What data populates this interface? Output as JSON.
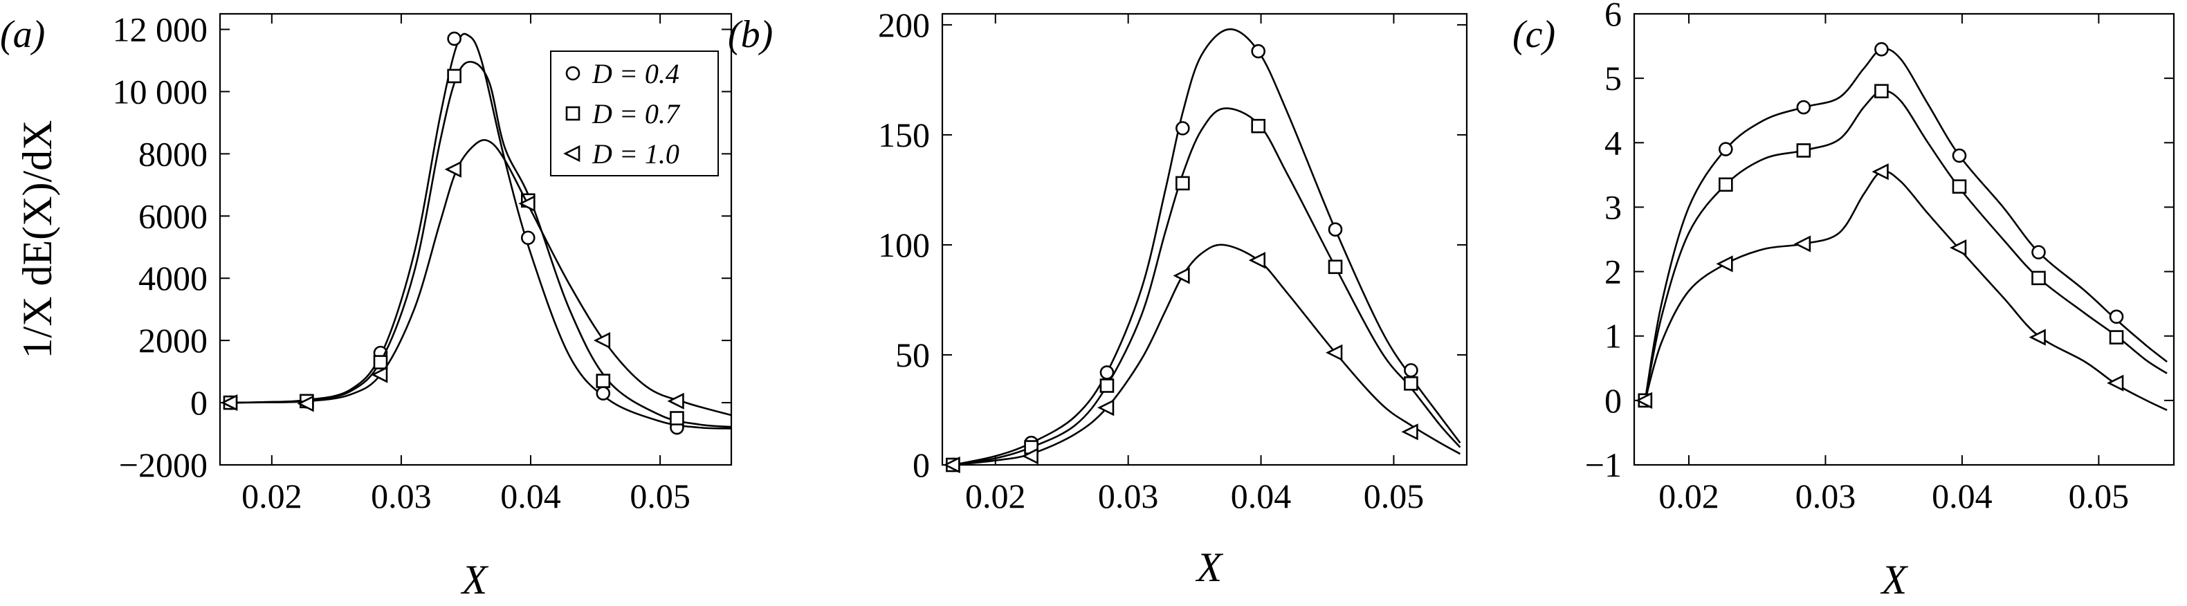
{
  "figure": {
    "panels": [
      {
        "label": "(a)",
        "xlabel": "X",
        "ylabel": "1/X dE(X)/dX"
      },
      {
        "label": "(b)",
        "xlabel": "X",
        "ylabel": ""
      },
      {
        "label": "(c)",
        "xlabel": "X",
        "ylabel": ""
      }
    ],
    "legend": [
      {
        "marker": "circle",
        "text": "D = 0.4"
      },
      {
        "marker": "square",
        "text": "D = 0.7"
      },
      {
        "marker": "triangle-left",
        "text": "D = 1.0"
      }
    ]
  },
  "chart_data": [
    {
      "type": "line",
      "panel_label": "(a)",
      "xlabel": "X",
      "ylabel": "1/X dE(X)/dX",
      "xlim": [
        0.016,
        0.0555
      ],
      "ylim": [
        -2000,
        12500
      ],
      "xticks": [
        0.02,
        0.03,
        0.04,
        0.05
      ],
      "xtick_labels": [
        "0.02",
        "0.03",
        "0.04",
        "0.05"
      ],
      "yticks": [
        -2000,
        0,
        2000,
        4000,
        6000,
        8000,
        10000,
        12000
      ],
      "ytick_labels": [
        "−2000",
        "0",
        "2000",
        "4000",
        "6000",
        "8000",
        "10 000",
        "12 000"
      ],
      "legend_position": "top-right",
      "grid": false,
      "series": [
        {
          "name": "D = 0.4",
          "marker": "circle",
          "curve": [
            [
              0.0168,
              0
            ],
            [
              0.0195,
              20
            ],
            [
              0.0225,
              80
            ],
            [
              0.026,
              400
            ],
            [
              0.0285,
              1600
            ],
            [
              0.031,
              4800
            ],
            [
              0.033,
              9200
            ],
            [
              0.0343,
              11500
            ],
            [
              0.0352,
              11800
            ],
            [
              0.0362,
              11000
            ],
            [
              0.038,
              7800
            ],
            [
              0.04,
              4800
            ],
            [
              0.043,
              1500
            ],
            [
              0.046,
              100
            ],
            [
              0.05,
              -600
            ],
            [
              0.053,
              -800
            ],
            [
              0.0555,
              -830
            ]
          ],
          "markers": [
            [
              0.0168,
              0
            ],
            [
              0.0227,
              40
            ],
            [
              0.0284,
              1600
            ],
            [
              0.0341,
              11700
            ],
            [
              0.0398,
              5300
            ],
            [
              0.0456,
              300
            ],
            [
              0.0513,
              -800
            ]
          ]
        },
        {
          "name": "D = 0.7",
          "marker": "square",
          "curve": [
            [
              0.0168,
              0
            ],
            [
              0.0195,
              20
            ],
            [
              0.0225,
              70
            ],
            [
              0.026,
              350
            ],
            [
              0.0285,
              1400
            ],
            [
              0.031,
              4200
            ],
            [
              0.033,
              8400
            ],
            [
              0.0343,
              10500
            ],
            [
              0.0355,
              10950
            ],
            [
              0.0368,
              10300
            ],
            [
              0.038,
              8200
            ],
            [
              0.04,
              6500
            ],
            [
              0.043,
              3000
            ],
            [
              0.046,
              700
            ],
            [
              0.05,
              -400
            ],
            [
              0.053,
              -700
            ],
            [
              0.0555,
              -780
            ]
          ],
          "markers": [
            [
              0.0168,
              0
            ],
            [
              0.0227,
              50
            ],
            [
              0.0284,
              1300
            ],
            [
              0.0341,
              10500
            ],
            [
              0.0398,
              6500
            ],
            [
              0.0456,
              700
            ],
            [
              0.0513,
              -500
            ]
          ]
        },
        {
          "name": "D = 1.0",
          "marker": "triangle-left",
          "curve": [
            [
              0.0168,
              0
            ],
            [
              0.0195,
              10
            ],
            [
              0.0225,
              40
            ],
            [
              0.026,
              250
            ],
            [
              0.0285,
              950
            ],
            [
              0.031,
              3000
            ],
            [
              0.033,
              5800
            ],
            [
              0.0343,
              7500
            ],
            [
              0.0357,
              8300
            ],
            [
              0.0368,
              8400
            ],
            [
              0.038,
              7800
            ],
            [
              0.04,
              6200
            ],
            [
              0.043,
              3800
            ],
            [
              0.046,
              1800
            ],
            [
              0.049,
              500
            ],
            [
              0.052,
              0
            ],
            [
              0.0555,
              -400
            ]
          ],
          "markers": [
            [
              0.0168,
              0
            ],
            [
              0.0227,
              -30
            ],
            [
              0.0284,
              900
            ],
            [
              0.0341,
              7500
            ],
            [
              0.0398,
              6400
            ],
            [
              0.0456,
              2000
            ],
            [
              0.0513,
              50
            ]
          ]
        }
      ]
    },
    {
      "type": "line",
      "panel_label": "(b)",
      "xlabel": "X",
      "ylabel": "",
      "xlim": [
        0.016,
        0.0555
      ],
      "ylim": [
        0,
        205
      ],
      "xticks": [
        0.02,
        0.03,
        0.04,
        0.05
      ],
      "xtick_labels": [
        "0.02",
        "0.03",
        "0.04",
        "0.05"
      ],
      "yticks": [
        0,
        50,
        100,
        150,
        200
      ],
      "ytick_labels": [
        "0",
        "50",
        "100",
        "150",
        "200"
      ],
      "grid": false,
      "series": [
        {
          "name": "D = 0.4",
          "marker": "circle",
          "curve": [
            [
              0.0168,
              0
            ],
            [
              0.02,
              4
            ],
            [
              0.0227,
              10
            ],
            [
              0.026,
              22
            ],
            [
              0.0284,
              42
            ],
            [
              0.031,
              80
            ],
            [
              0.0328,
              125
            ],
            [
              0.0341,
              160
            ],
            [
              0.0355,
              186
            ],
            [
              0.0376,
              198
            ],
            [
              0.0398,
              188
            ],
            [
              0.042,
              160
            ],
            [
              0.0456,
              107
            ],
            [
              0.049,
              62
            ],
            [
              0.0513,
              40
            ],
            [
              0.0535,
              22
            ],
            [
              0.055,
              10
            ]
          ],
          "markers": [
            [
              0.0168,
              0
            ],
            [
              0.0227,
              10
            ],
            [
              0.0284,
              42
            ],
            [
              0.0341,
              153
            ],
            [
              0.0398,
              188
            ],
            [
              0.0456,
              107
            ],
            [
              0.0513,
              43
            ]
          ]
        },
        {
          "name": "D = 0.7",
          "marker": "square",
          "curve": [
            [
              0.0168,
              0
            ],
            [
              0.02,
              3
            ],
            [
              0.0227,
              8
            ],
            [
              0.026,
              18
            ],
            [
              0.0284,
              36
            ],
            [
              0.031,
              68
            ],
            [
              0.0328,
              106
            ],
            [
              0.0341,
              132
            ],
            [
              0.0355,
              152
            ],
            [
              0.0372,
              162
            ],
            [
              0.0398,
              155
            ],
            [
              0.042,
              132
            ],
            [
              0.0456,
              90
            ],
            [
              0.049,
              52
            ],
            [
              0.0513,
              35
            ],
            [
              0.0535,
              18
            ],
            [
              0.055,
              8
            ]
          ],
          "markers": [
            [
              0.0168,
              0
            ],
            [
              0.0227,
              8
            ],
            [
              0.0284,
              36
            ],
            [
              0.0341,
              128
            ],
            [
              0.0398,
              154
            ],
            [
              0.0456,
              90
            ],
            [
              0.0513,
              37
            ]
          ]
        },
        {
          "name": "D = 1.0",
          "marker": "triangle-left",
          "curve": [
            [
              0.0168,
              0
            ],
            [
              0.02,
              2
            ],
            [
              0.0227,
              5
            ],
            [
              0.026,
              14
            ],
            [
              0.0284,
              26
            ],
            [
              0.031,
              48
            ],
            [
              0.0328,
              70
            ],
            [
              0.0341,
              86
            ],
            [
              0.0355,
              96
            ],
            [
              0.0372,
              100
            ],
            [
              0.0398,
              93
            ],
            [
              0.042,
              78
            ],
            [
              0.0456,
              51
            ],
            [
              0.049,
              28
            ],
            [
              0.0513,
              18
            ],
            [
              0.0535,
              10
            ],
            [
              0.055,
              5
            ]
          ],
          "markers": [
            [
              0.0168,
              0
            ],
            [
              0.0227,
              4
            ],
            [
              0.0284,
              26
            ],
            [
              0.0341,
              86
            ],
            [
              0.0398,
              93
            ],
            [
              0.0456,
              51
            ],
            [
              0.0513,
              15
            ]
          ]
        }
      ]
    },
    {
      "type": "line",
      "panel_label": "(c)",
      "xlabel": "X",
      "ylabel": "",
      "xlim": [
        0.016,
        0.0555
      ],
      "ylim": [
        -1,
        6
      ],
      "xticks": [
        0.02,
        0.03,
        0.04,
        0.05
      ],
      "xtick_labels": [
        "0.02",
        "0.03",
        "0.04",
        "0.05"
      ],
      "yticks": [
        -1,
        0,
        1,
        2,
        3,
        4,
        5,
        6
      ],
      "ytick_labels": [
        "−1",
        "0",
        "1",
        "2",
        "3",
        "4",
        "5",
        "6"
      ],
      "grid": false,
      "series": [
        {
          "name": "D = 0.4",
          "marker": "circle",
          "curve": [
            [
              0.0168,
              0
            ],
            [
              0.018,
              1.5
            ],
            [
              0.02,
              3.0
            ],
            [
              0.0227,
              3.9
            ],
            [
              0.0255,
              4.35
            ],
            [
              0.0284,
              4.55
            ],
            [
              0.031,
              4.7
            ],
            [
              0.0328,
              5.15
            ],
            [
              0.0341,
              5.45
            ],
            [
              0.0355,
              5.3
            ],
            [
              0.0375,
              4.6
            ],
            [
              0.0398,
              3.8
            ],
            [
              0.043,
              3.0
            ],
            [
              0.0456,
              2.3
            ],
            [
              0.049,
              1.7
            ],
            [
              0.0513,
              1.25
            ],
            [
              0.0535,
              0.85
            ],
            [
              0.055,
              0.6
            ]
          ],
          "markers": [
            [
              0.0168,
              0
            ],
            [
              0.0227,
              3.9
            ],
            [
              0.0284,
              4.55
            ],
            [
              0.0341,
              5.45
            ],
            [
              0.0398,
              3.8
            ],
            [
              0.0456,
              2.3
            ],
            [
              0.0513,
              1.3
            ]
          ]
        },
        {
          "name": "D = 0.7",
          "marker": "square",
          "curve": [
            [
              0.0168,
              0
            ],
            [
              0.018,
              1.3
            ],
            [
              0.02,
              2.6
            ],
            [
              0.0227,
              3.35
            ],
            [
              0.0255,
              3.75
            ],
            [
              0.0284,
              3.88
            ],
            [
              0.031,
              4.05
            ],
            [
              0.0328,
              4.55
            ],
            [
              0.0341,
              4.8
            ],
            [
              0.0355,
              4.65
            ],
            [
              0.0375,
              4.0
            ],
            [
              0.0398,
              3.3
            ],
            [
              0.043,
              2.5
            ],
            [
              0.0456,
              1.9
            ],
            [
              0.049,
              1.35
            ],
            [
              0.0513,
              1.0
            ],
            [
              0.0535,
              0.62
            ],
            [
              0.055,
              0.42
            ]
          ],
          "markers": [
            [
              0.0168,
              0
            ],
            [
              0.0227,
              3.35
            ],
            [
              0.0284,
              3.88
            ],
            [
              0.0341,
              4.8
            ],
            [
              0.0398,
              3.32
            ],
            [
              0.0456,
              1.9
            ],
            [
              0.0513,
              0.98
            ]
          ]
        },
        {
          "name": "D = 1.0",
          "marker": "triangle-left",
          "curve": [
            [
              0.0168,
              0
            ],
            [
              0.018,
              0.9
            ],
            [
              0.02,
              1.7
            ],
            [
              0.0227,
              2.12
            ],
            [
              0.0255,
              2.35
            ],
            [
              0.0284,
              2.43
            ],
            [
              0.031,
              2.6
            ],
            [
              0.0328,
              3.2
            ],
            [
              0.0341,
              3.55
            ],
            [
              0.0355,
              3.4
            ],
            [
              0.0375,
              2.9
            ],
            [
              0.0398,
              2.35
            ],
            [
              0.043,
              1.6
            ],
            [
              0.0456,
              1.0
            ],
            [
              0.049,
              0.6
            ],
            [
              0.0513,
              0.25
            ],
            [
              0.0535,
              0.0
            ],
            [
              0.055,
              -0.15
            ]
          ],
          "markers": [
            [
              0.0168,
              0
            ],
            [
              0.0227,
              2.12
            ],
            [
              0.0284,
              2.43
            ],
            [
              0.0341,
              3.55
            ],
            [
              0.0398,
              2.37
            ],
            [
              0.0456,
              0.98
            ],
            [
              0.0513,
              0.27
            ]
          ]
        }
      ]
    }
  ]
}
